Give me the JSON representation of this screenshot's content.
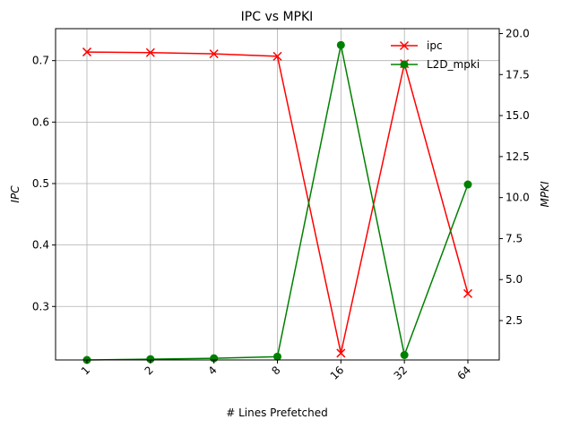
{
  "chart_data": {
    "type": "line",
    "title": "IPC vs MPKI",
    "xlabel": "# Lines Prefetched",
    "ylabel_left": "IPC",
    "ylabel_right": "MPKI",
    "categories": [
      "1",
      "2",
      "4",
      "8",
      "16",
      "32",
      "64"
    ],
    "y_left": {
      "ylim": [
        0.213,
        0.752
      ],
      "ticks": [
        "0.3",
        "0.4",
        "0.5",
        "0.6",
        "0.7"
      ]
    },
    "y_right": {
      "ylim": [
        0.1,
        20.3
      ],
      "ticks": [
        "2.5",
        "5.0",
        "7.5",
        "10.0",
        "12.5",
        "15.0",
        "17.5",
        "20.0"
      ]
    },
    "series": [
      {
        "name": "ipc",
        "axis": "left",
        "color": "#ff0000",
        "marker": "x",
        "values": [
          0.714,
          0.713,
          0.711,
          0.707,
          0.224,
          0.695,
          0.321
        ]
      },
      {
        "name": "L2D_mpki",
        "axis": "right",
        "color": "#008000",
        "marker": "o",
        "values": [
          0.1,
          0.15,
          0.2,
          0.3,
          19.3,
          0.4,
          10.8
        ]
      }
    ],
    "grid": true,
    "legend_placement": "top-right"
  }
}
